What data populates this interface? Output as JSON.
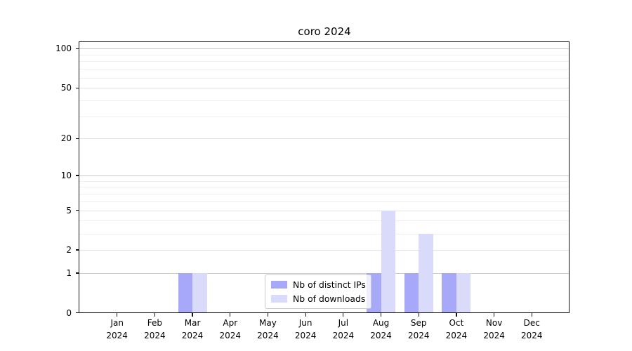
{
  "chart_data": {
    "type": "bar",
    "title": "coro 2024",
    "categories": [
      "Jan",
      "Feb",
      "Mar",
      "Apr",
      "May",
      "Jun",
      "Jul",
      "Aug",
      "Sep",
      "Oct",
      "Nov",
      "Dec"
    ],
    "year_label": "2024",
    "series": [
      {
        "name": "Nb of distinct IPs",
        "color": "#a8a8f8",
        "values": [
          0,
          0,
          1,
          0,
          0,
          0,
          0,
          1,
          1,
          1,
          0,
          0
        ]
      },
      {
        "name": "Nb of downloads",
        "color": "#dadafa",
        "values": [
          0,
          0,
          1,
          0,
          0,
          0,
          0,
          5,
          3,
          1,
          0,
          0
        ]
      }
    ],
    "y_axis": {
      "scale": "log1p",
      "ylim": [
        0,
        112
      ],
      "ticks": [
        {
          "label": "0",
          "value": 0
        },
        {
          "label": "1",
          "value": 1
        },
        {
          "label": "2",
          "value": 2
        },
        {
          "label": "5",
          "value": 5
        },
        {
          "label": "10",
          "value": 10
        },
        {
          "label": "20",
          "value": 20
        },
        {
          "label": "50",
          "value": 50
        },
        {
          "label": "100",
          "value": 100
        }
      ],
      "major_gridlines": [
        1,
        10,
        100
      ],
      "mid_gridlines": [
        2,
        5,
        20,
        50
      ],
      "minor_gridlines": [
        3,
        4,
        6,
        7,
        8,
        9,
        30,
        40,
        60,
        70,
        80,
        90
      ]
    },
    "x_axis": {
      "label_line2": "2024"
    },
    "legend": {
      "position": "lower center",
      "entries": [
        "Nb of distinct IPs",
        "Nb of downloads"
      ]
    },
    "grid": true
  }
}
